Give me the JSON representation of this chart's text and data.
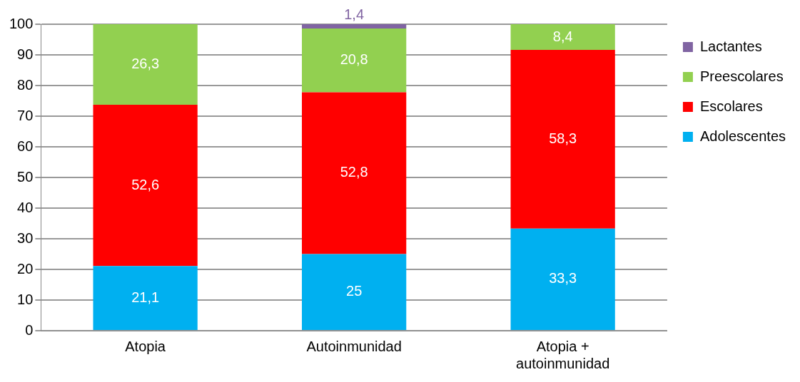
{
  "chart_data": {
    "type": "bar",
    "stacked": true,
    "categories": [
      "Atopia",
      "Autoinmunidad",
      "Atopia + autoinmunidad"
    ],
    "series": [
      {
        "name": "Adolescentes",
        "color": "#00b0f0",
        "values": [
          21.1,
          25,
          33.3
        ],
        "value_labels": [
          "21,1",
          "25",
          "33,3"
        ]
      },
      {
        "name": "Escolares",
        "color": "#ff0000",
        "values": [
          52.6,
          52.8,
          58.3
        ],
        "value_labels": [
          "52,6",
          "52,8",
          "58,3"
        ]
      },
      {
        "name": "Preescolares",
        "color": "#92d050",
        "values": [
          26.3,
          20.8,
          8.4
        ],
        "value_labels": [
          "26,3",
          "20,8",
          "8,4"
        ]
      },
      {
        "name": "Lactantes",
        "color": "#8064a2",
        "values": [
          null,
          1.4,
          null
        ],
        "value_labels": [
          null,
          "1,4",
          null
        ]
      }
    ],
    "ylim": [
      0,
      100
    ],
    "yticks": [
      0,
      10,
      20,
      30,
      40,
      50,
      60,
      70,
      80,
      90,
      100
    ],
    "grid": "y",
    "legend": "right"
  }
}
